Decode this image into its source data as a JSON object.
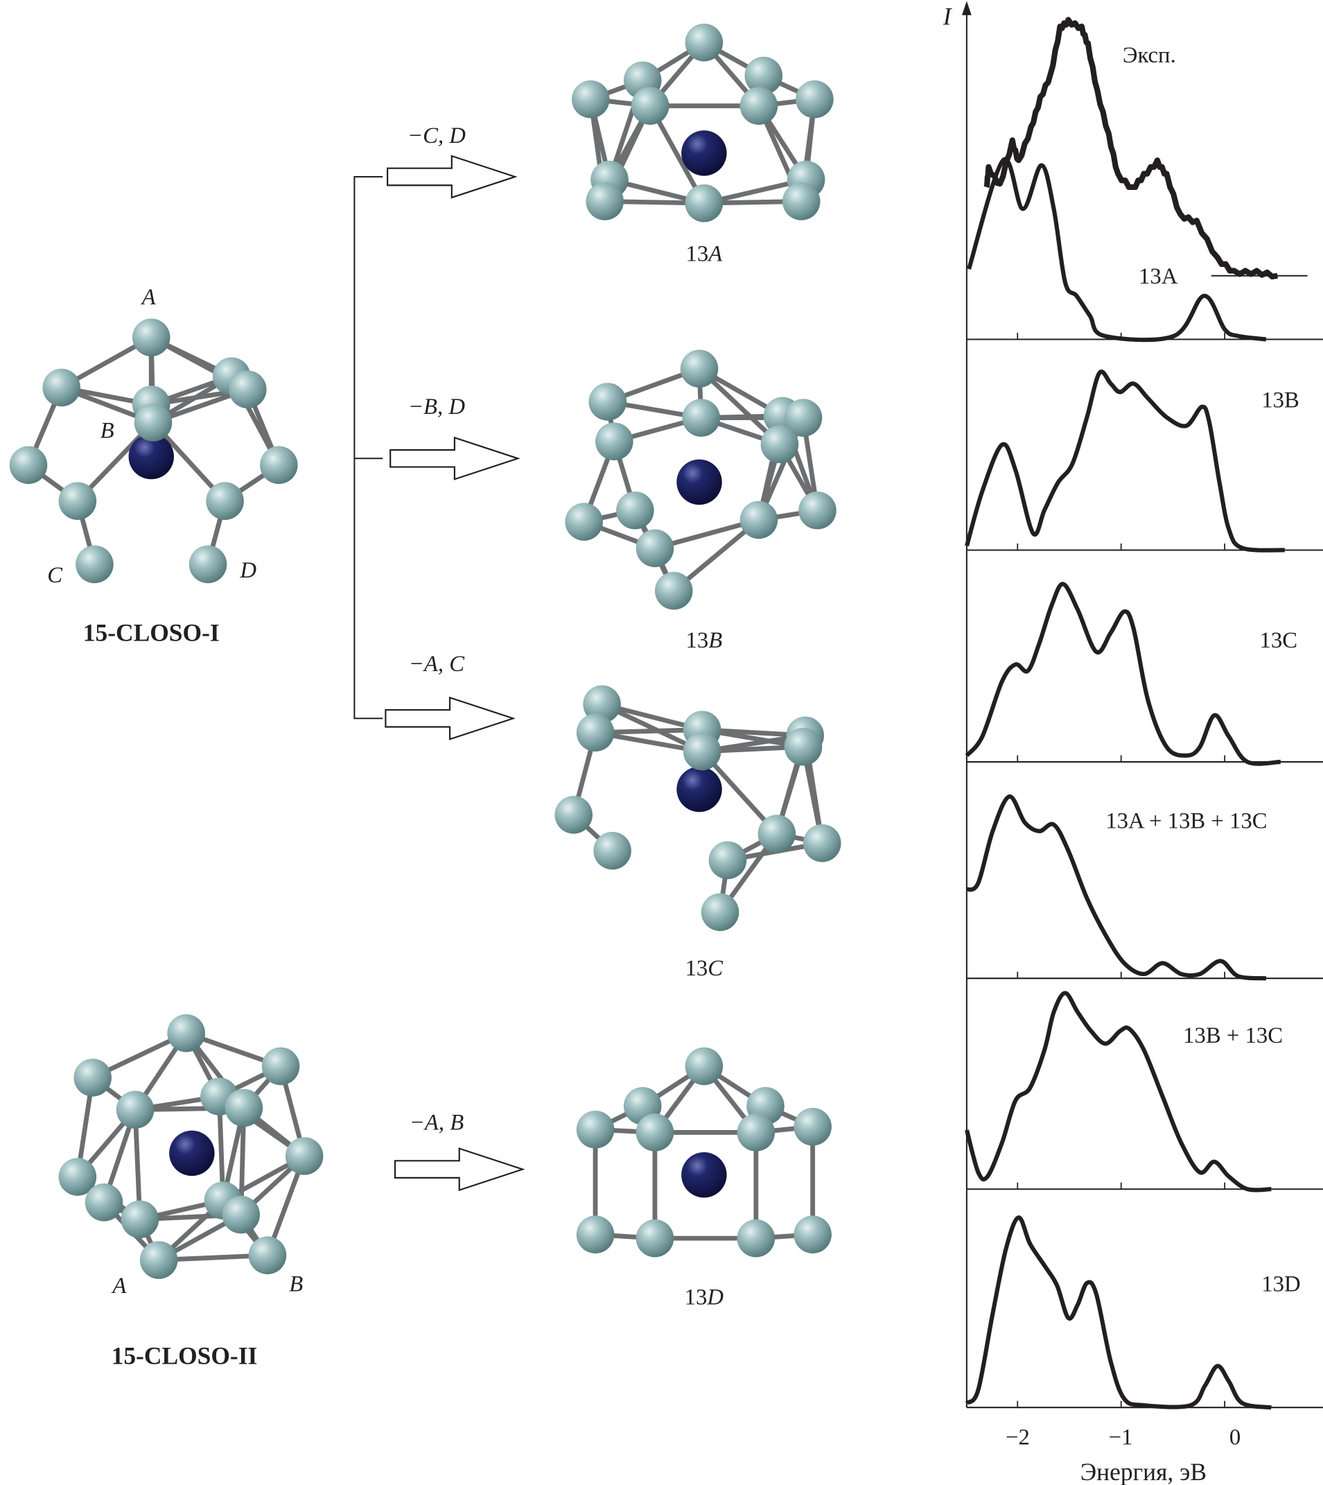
{
  "structures": {
    "closo_i": {
      "name": "15-CLOSO-I",
      "site_labels": [
        "A",
        "B",
        "C",
        "D"
      ]
    },
    "closo_ii": {
      "name": "15-CLOSO-II",
      "site_labels": [
        "A",
        "B"
      ]
    },
    "products": [
      {
        "name": "13A",
        "num": "13",
        "letter": "A",
        "removal": "−C, D"
      },
      {
        "name": "13B",
        "num": "13",
        "letter": "B",
        "removal": "−B, D"
      },
      {
        "name": "13C",
        "num": "13",
        "letter": "C",
        "removal": "−A, C"
      },
      {
        "name": "13D",
        "num": "13",
        "letter": "D",
        "removal": "−A, B"
      }
    ]
  },
  "colors": {
    "cage_atom": "#8fb2b4",
    "central_atom": "#1c205c",
    "curve": "#231f20"
  },
  "chart_data": {
    "type": "line",
    "ylabel": "I",
    "xlabel": "Энергия, эВ",
    "xlim": [
      -2.49,
      0.95
    ],
    "xticks": [
      -2,
      -1,
      0
    ],
    "xtick_labels": [
      "−2",
      "−1",
      "0"
    ],
    "grid": false,
    "panels": [
      {
        "labels": [
          "Эксп.",
          "13A"
        ],
        "series": [
          {
            "name": "Эксп.",
            "x": [
              -2.3,
              -2.28,
              -2.17,
              -2.05,
              -1.99,
              -1.87,
              -1.78,
              -1.68,
              -1.59,
              -1.51,
              -1.38,
              -1.32,
              -1.23,
              -1.12,
              -1.03,
              -0.89,
              -0.78,
              -0.65,
              -0.56,
              -0.43,
              -0.27,
              -0.07,
              0.09,
              0.31,
              0.51
            ],
            "y": [
              0.45,
              0.51,
              0.46,
              0.59,
              0.53,
              0.63,
              0.72,
              0.79,
              0.93,
              0.95,
              0.93,
              0.88,
              0.74,
              0.61,
              0.49,
              0.45,
              0.49,
              0.53,
              0.49,
              0.37,
              0.35,
              0.24,
              0.2,
              0.2,
              0.19
            ]
          },
          {
            "name": "13A",
            "x": [
              -2.47,
              -2.14,
              -1.95,
              -1.77,
              -1.65,
              -1.54,
              -1.43,
              -1.3,
              -1.16,
              -0.49,
              -0.2,
              0.0,
              0.13,
              0.4
            ],
            "y": [
              0.21,
              0.535,
              0.39,
              0.52,
              0.39,
              0.17,
              0.13,
              0.07,
              0.01,
              0.01,
              0.13,
              0.03,
              0.01,
              0.0
            ]
          }
        ],
        "exp_baseline": {
          "x": [
            -0.13,
            0.8
          ],
          "y": 0.19
        }
      },
      {
        "labels": [
          "13B"
        ],
        "series": [
          {
            "name": "13B",
            "x": [
              -2.49,
              -2.34,
              -2.15,
              -2.02,
              -1.85,
              -1.74,
              -1.61,
              -1.47,
              -1.33,
              -1.21,
              -1.1,
              -1.01,
              -0.88,
              -0.74,
              -0.56,
              -0.37,
              -0.22,
              -0.15,
              -0.05,
              0.04,
              0.17,
              0.58
            ],
            "y": [
              0.02,
              0.28,
              0.5,
              0.38,
              0.08,
              0.19,
              0.32,
              0.41,
              0.63,
              0.84,
              0.79,
              0.75,
              0.79,
              0.72,
              0.63,
              0.59,
              0.68,
              0.61,
              0.32,
              0.1,
              0.01,
              0.0
            ]
          }
        ]
      },
      {
        "labels": [
          "13C"
        ],
        "series": [
          {
            "name": "13C",
            "x": [
              -2.49,
              -2.34,
              -2.15,
              -2.02,
              -1.9,
              -1.79,
              -1.67,
              -1.56,
              -1.42,
              -1.24,
              -1.1,
              -0.97,
              -0.88,
              -0.74,
              -0.56,
              -0.37,
              -0.24,
              -0.1,
              0.04,
              0.22,
              0.54
            ],
            "y": [
              0.03,
              0.12,
              0.38,
              0.46,
              0.43,
              0.56,
              0.74,
              0.84,
              0.72,
              0.52,
              0.61,
              0.71,
              0.63,
              0.29,
              0.07,
              0.03,
              0.07,
              0.22,
              0.12,
              0.0,
              0.0
            ]
          }
        ]
      },
      {
        "labels": [
          "13A + 13B + 13C"
        ],
        "series": [
          {
            "name": "13A + 13B + 13C",
            "x": [
              -2.49,
              -2.38,
              -2.24,
              -2.08,
              -1.93,
              -1.79,
              -1.65,
              -1.51,
              -1.33,
              -1.15,
              -0.97,
              -0.78,
              -0.6,
              -0.42,
              -0.24,
              -0.04,
              0.13,
              0.4
            ],
            "y": [
              0.41,
              0.44,
              0.68,
              0.84,
              0.72,
              0.68,
              0.71,
              0.59,
              0.37,
              0.2,
              0.07,
              0.02,
              0.07,
              0.02,
              0.02,
              0.08,
              0.01,
              0.0
            ]
          }
        ]
      },
      {
        "labels": [
          "13B + 13C"
        ],
        "series": [
          {
            "name": "13B + 13C",
            "x": [
              -2.49,
              -2.38,
              -2.29,
              -2.15,
              -2.02,
              -1.88,
              -1.74,
              -1.65,
              -1.54,
              -1.42,
              -1.29,
              -1.15,
              -1.01,
              -0.92,
              -0.78,
              -0.6,
              -0.42,
              -0.24,
              -0.1,
              0.04,
              0.22,
              0.45
            ],
            "y": [
              0.28,
              0.08,
              0.06,
              0.22,
              0.42,
              0.48,
              0.66,
              0.84,
              0.93,
              0.84,
              0.75,
              0.69,
              0.75,
              0.76,
              0.66,
              0.44,
              0.22,
              0.08,
              0.13,
              0.06,
              0.0,
              0.0
            ]
          }
        ]
      },
      {
        "labels": [
          "13D"
        ],
        "series": [
          {
            "name": "13D",
            "x": [
              -2.49,
              -2.38,
              -2.24,
              -2.11,
              -1.99,
              -1.88,
              -1.74,
              -1.62,
              -1.51,
              -1.42,
              -1.33,
              -1.24,
              -1.1,
              -0.97,
              -0.78,
              -0.33,
              -0.19,
              -0.07,
              0.04,
              0.17,
              0.45
            ],
            "y": [
              0.02,
              0.08,
              0.43,
              0.73,
              0.87,
              0.75,
              0.65,
              0.56,
              0.41,
              0.47,
              0.57,
              0.52,
              0.21,
              0.04,
              0.01,
              0.01,
              0.1,
              0.19,
              0.12,
              0.02,
              0.0
            ]
          }
        ]
      }
    ]
  }
}
